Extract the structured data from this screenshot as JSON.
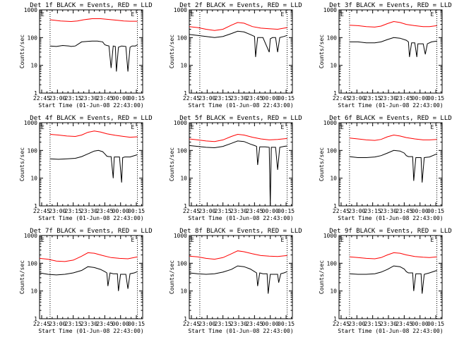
{
  "figure": {
    "time_ticks": [
      "22:45",
      "23:00",
      "23:15",
      "23:30",
      "23:45",
      "00:00",
      "00:15"
    ],
    "y_ticks": [
      "1",
      "10",
      "100",
      "1000"
    ],
    "colors": {
      "events": "#000000",
      "lld": "#ff0000"
    }
  },
  "chart_data": [
    {
      "type": "line",
      "title": "Det 1f BLACK = Events, RED = LLD",
      "xlabel": "Start Time (01-Jun-08 22:43:00)",
      "ylabel": "Counts/sec",
      "x_unit": "minutes since 22:43:00",
      "xlim": [
        0,
        98
      ],
      "ylim": [
        1,
        1000
      ],
      "y_scale": "log",
      "vlines_x": [
        10,
        93
      ],
      "markers": {
        "left": "E",
        "right": "E"
      },
      "series": [
        {
          "color": "#ff0000",
          "x": [
            10,
            20,
            30,
            36,
            42,
            50,
            58,
            66,
            74,
            80,
            86,
            93
          ],
          "values": [
            440,
            400,
            380,
            400,
            440,
            480,
            480,
            450,
            420,
            400,
            390,
            390
          ]
        },
        {
          "color": "#000000",
          "x": [
            10,
            16,
            22,
            28,
            30,
            34,
            40,
            50,
            55,
            60,
            62,
            64,
            66,
            68,
            70,
            72,
            73,
            75,
            78,
            82,
            84,
            86,
            88,
            91,
            93
          ],
          "values": [
            50,
            48,
            52,
            50,
            48,
            50,
            70,
            75,
            75,
            70,
            55,
            52,
            50,
            8,
            50,
            48,
            6,
            45,
            50,
            48,
            6,
            45,
            50,
            50,
            55
          ]
        }
      ]
    },
    {
      "type": "line",
      "title": "Det 2f BLACK = Events, RED = LLD",
      "xlabel": "Start Time (01-Jun-08 22:43:00)",
      "ylabel": "Counts/sec",
      "x_unit": "minutes since 22:43:00",
      "xlim": [
        0,
        98
      ],
      "ylim": [
        1,
        1000
      ],
      "y_scale": "log",
      "vlines_x": [
        10,
        93
      ],
      "markers": {
        "left": "E",
        "right": "E"
      },
      "series": [
        {
          "color": "#ff0000",
          "x": [
            0,
            8,
            16,
            24,
            32,
            40,
            46,
            52,
            60,
            68,
            76,
            84,
            93
          ],
          "values": [
            250,
            230,
            200,
            180,
            200,
            280,
            350,
            330,
            250,
            220,
            210,
            200,
            230
          ]
        },
        {
          "color": "#000000",
          "x": [
            0,
            8,
            16,
            24,
            32,
            40,
            46,
            52,
            58,
            62,
            63,
            65,
            70,
            76,
            77,
            79,
            82,
            84,
            86,
            90,
            93
          ],
          "values": [
            130,
            120,
            110,
            100,
            110,
            140,
            170,
            160,
            130,
            110,
            20,
            100,
            100,
            30,
            90,
            100,
            100,
            30,
            100,
            110,
            120
          ]
        }
      ]
    },
    {
      "type": "line",
      "title": "Det 3f BLACK = Events, RED = LLD",
      "xlabel": "Start Time (01-Jun-08 22:43:00)",
      "ylabel": "Counts/sec",
      "x_unit": "minutes since 22:43:00",
      "xlim": [
        0,
        98
      ],
      "ylim": [
        1,
        1000
      ],
      "y_scale": "log",
      "vlines_x": [
        10,
        93
      ],
      "markers": {
        "left": "E",
        "right": "E"
      },
      "series": [
        {
          "color": "#ff0000",
          "x": [
            10,
            18,
            26,
            34,
            40,
            46,
            52,
            58,
            64,
            72,
            80,
            86,
            93
          ],
          "values": [
            280,
            270,
            250,
            240,
            260,
            320,
            380,
            350,
            300,
            270,
            250,
            250,
            270
          ]
        },
        {
          "color": "#000000",
          "x": [
            10,
            18,
            26,
            34,
            40,
            46,
            52,
            58,
            64,
            66,
            67,
            69,
            72,
            74,
            75,
            77,
            80,
            82,
            84,
            88,
            93
          ],
          "values": [
            70,
            70,
            65,
            65,
            70,
            85,
            100,
            95,
            80,
            70,
            20,
            65,
            65,
            20,
            60,
            60,
            60,
            25,
            60,
            70,
            75
          ]
        }
      ]
    },
    {
      "type": "line",
      "title": "Det 4f BLACK = Events, RED = LLD",
      "xlabel": "Start Time (01-Jun-08 22:43:00)",
      "ylabel": "Counts/sec",
      "x_unit": "minutes since 22:43:00",
      "xlim": [
        0,
        98
      ],
      "ylim": [
        1,
        1000
      ],
      "y_scale": "log",
      "vlines_x": [
        10,
        93
      ],
      "markers": {
        "left": "E",
        "right": "E"
      },
      "series": [
        {
          "color": "#ff0000",
          "x": [
            10,
            18,
            26,
            34,
            40,
            46,
            52,
            58,
            64,
            72,
            80,
            86,
            93
          ],
          "values": [
            380,
            360,
            330,
            320,
            360,
            450,
            500,
            460,
            400,
            350,
            320,
            300,
            310
          ]
        },
        {
          "color": "#000000",
          "x": [
            10,
            18,
            26,
            34,
            40,
            46,
            52,
            56,
            60,
            62,
            64,
            66,
            68,
            70,
            71,
            73,
            76,
            78,
            79,
            81,
            86,
            93
          ],
          "values": [
            50,
            48,
            50,
            52,
            60,
            75,
            95,
            100,
            90,
            75,
            62,
            60,
            60,
            10,
            58,
            58,
            58,
            7,
            55,
            58,
            58,
            70
          ]
        }
      ]
    },
    {
      "type": "line",
      "title": "Det 5f BLACK = Events, RED = LLD",
      "xlabel": "Start Time (01-Jun-08 22:43:00)",
      "ylabel": "Counts/sec",
      "x_unit": "minutes since 22:43:00",
      "xlim": [
        0,
        98
      ],
      "ylim": [
        1,
        1000
      ],
      "y_scale": "log",
      "vlines_x": [
        10,
        93
      ],
      "markers": {
        "left": "E",
        "right": "E"
      },
      "series": [
        {
          "color": "#ff0000",
          "x": [
            0,
            8,
            16,
            24,
            32,
            40,
            46,
            52,
            60,
            68,
            76,
            84,
            93
          ],
          "values": [
            260,
            240,
            220,
            210,
            240,
            320,
            380,
            360,
            300,
            260,
            240,
            250,
            270
          ]
        },
        {
          "color": "#000000",
          "x": [
            0,
            8,
            16,
            24,
            32,
            40,
            46,
            52,
            58,
            62,
            64,
            65,
            67,
            72,
            76,
            77,
            78,
            80,
            82,
            84,
            86,
            90,
            93
          ],
          "values": [
            150,
            140,
            130,
            125,
            140,
            180,
            220,
            210,
            170,
            150,
            140,
            30,
            135,
            135,
            130,
            1,
            130,
            130,
            130,
            20,
            130,
            140,
            145
          ]
        }
      ]
    },
    {
      "type": "line",
      "title": "Det 6f BLACK = Events, RED = LLD",
      "xlabel": "Start Time (01-Jun-08 22:43:00)",
      "ylabel": "Counts/sec",
      "x_unit": "minutes since 22:43:00",
      "xlim": [
        0,
        98
      ],
      "ylim": [
        1,
        1000
      ],
      "y_scale": "log",
      "vlines_x": [
        10,
        93
      ],
      "markers": {
        "left": "E",
        "right": "E"
      },
      "series": [
        {
          "color": "#ff0000",
          "x": [
            10,
            18,
            26,
            34,
            40,
            46,
            52,
            58,
            64,
            72,
            80,
            86,
            93
          ],
          "values": [
            280,
            260,
            240,
            230,
            250,
            310,
            360,
            330,
            290,
            260,
            240,
            240,
            250
          ]
        },
        {
          "color": "#000000",
          "x": [
            10,
            18,
            26,
            34,
            40,
            46,
            52,
            58,
            62,
            64,
            66,
            68,
            70,
            71,
            73,
            76,
            78,
            79,
            81,
            86,
            93
          ],
          "values": [
            60,
            55,
            55,
            58,
            65,
            80,
            100,
            95,
            80,
            65,
            60,
            60,
            60,
            8,
            55,
            55,
            55,
            7,
            55,
            58,
            75
          ]
        }
      ]
    },
    {
      "type": "line",
      "title": "Det 7f BLACK = Events, RED = LLD",
      "xlabel": "Start Time (01-Jun-08 22:43:00)",
      "ylabel": "Counts/sec",
      "x_unit": "minutes since 22:43:00",
      "xlim": [
        0,
        98
      ],
      "ylim": [
        1,
        1000
      ],
      "y_scale": "log",
      "vlines_x": [
        10,
        93
      ],
      "markers": {
        "left": "E",
        "right": "E"
      },
      "series": [
        {
          "color": "#ff0000",
          "x": [
            0,
            8,
            16,
            24,
            32,
            40,
            46,
            52,
            60,
            68,
            76,
            84,
            93
          ],
          "values": [
            150,
            140,
            120,
            115,
            130,
            180,
            240,
            230,
            190,
            160,
            150,
            145,
            170
          ]
        },
        {
          "color": "#000000",
          "x": [
            0,
            8,
            16,
            24,
            32,
            40,
            46,
            52,
            58,
            62,
            64,
            65,
            67,
            70,
            74,
            75,
            77,
            80,
            82,
            84,
            86,
            90,
            93
          ],
          "values": [
            45,
            40,
            38,
            40,
            45,
            55,
            75,
            70,
            60,
            50,
            45,
            15,
            45,
            42,
            42,
            10,
            40,
            40,
            40,
            12,
            42,
            45,
            50
          ]
        }
      ]
    },
    {
      "type": "line",
      "title": "Det 8f BLACK = Events, RED = LLD",
      "xlabel": "Start Time (01-Jun-08 22:43:00)",
      "ylabel": "Counts/sec",
      "x_unit": "minutes since 22:43:00",
      "xlim": [
        0,
        98
      ],
      "ylim": [
        1,
        1000
      ],
      "y_scale": "log",
      "vlines_x": [
        10,
        93
      ],
      "markers": {
        "left": "E",
        "right": "E"
      },
      "series": [
        {
          "color": "#ff0000",
          "x": [
            0,
            8,
            16,
            24,
            32,
            40,
            46,
            52,
            60,
            68,
            76,
            84,
            93
          ],
          "values": [
            180,
            170,
            150,
            140,
            160,
            220,
            280,
            260,
            220,
            190,
            180,
            175,
            190
          ]
        },
        {
          "color": "#000000",
          "x": [
            0,
            8,
            16,
            24,
            32,
            40,
            46,
            52,
            58,
            62,
            64,
            65,
            67,
            70,
            74,
            75,
            77,
            80,
            84,
            85,
            87,
            90,
            93
          ],
          "values": [
            45,
            42,
            40,
            42,
            48,
            60,
            80,
            75,
            62,
            50,
            45,
            15,
            45,
            42,
            42,
            8,
            40,
            40,
            40,
            20,
            42,
            45,
            50
          ]
        }
      ]
    },
    {
      "type": "line",
      "title": "Det 9f BLACK = Events, RED = LLD",
      "xlabel": "Start Time (01-Jun-08 22:43:00)",
      "ylabel": "Counts/sec",
      "x_unit": "minutes since 22:43:00",
      "xlim": [
        0,
        98
      ],
      "ylim": [
        1,
        1000
      ],
      "y_scale": "log",
      "vlines_x": [
        10,
        93
      ],
      "markers": {
        "left": "E",
        "right": "E"
      },
      "series": [
        {
          "color": "#ff0000",
          "x": [
            10,
            18,
            26,
            34,
            40,
            46,
            52,
            58,
            64,
            72,
            80,
            86,
            93
          ],
          "values": [
            170,
            160,
            150,
            145,
            160,
            200,
            240,
            230,
            200,
            175,
            165,
            160,
            170
          ]
        },
        {
          "color": "#000000",
          "x": [
            10,
            18,
            26,
            34,
            40,
            46,
            52,
            58,
            62,
            64,
            66,
            68,
            70,
            71,
            73,
            76,
            78,
            79,
            81,
            86,
            93
          ],
          "values": [
            42,
            40,
            40,
            42,
            48,
            60,
            80,
            75,
            62,
            50,
            45,
            45,
            45,
            10,
            42,
            42,
            42,
            8,
            40,
            45,
            55
          ]
        }
      ]
    }
  ]
}
